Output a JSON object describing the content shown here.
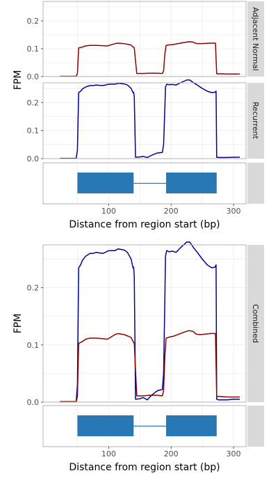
{
  "x_axis": {
    "label": "Distance from region start (bp)",
    "range": [
      -5,
      320
    ],
    "ticks": [
      "100",
      "200",
      "300"
    ],
    "tick_values": [
      100,
      200,
      300
    ]
  },
  "y_axis_label": "FPM",
  "colors": {
    "adjacent_normal": "#8B0000",
    "recurrent": "#00008B",
    "exon": "#2878B5",
    "strip": "#d9d9d9",
    "panel_border": "#b3b3b3"
  },
  "top_panels": {
    "ylim": [
      0,
      0.27
    ],
    "yticks": [
      "0.0",
      "0.1",
      "0.2"
    ],
    "ytick_values": [
      0,
      0.1,
      0.2
    ],
    "strip_labels": {
      "adjacent_normal": "Adjacent Normal",
      "recurrent": "Recurrent"
    }
  },
  "combined_panel": {
    "ylim": [
      0,
      0.275
    ],
    "yticks": [
      "0.0",
      "0.1",
      "0.2"
    ],
    "ytick_values": [
      0,
      0.1,
      0.2
    ],
    "strip_label": "Combined"
  },
  "chart_data": {
    "type": "line",
    "xlabel": "Distance from region start (bp)",
    "ylabel": "FPM",
    "series": [
      {
        "key": "adjacent_normal",
        "color": "#8B0000",
        "x": [
          22,
          48,
          50,
          52,
          58,
          63,
          70,
          80,
          90,
          98,
          110,
          115,
          125,
          132,
          136,
          140,
          141,
          145,
          155,
          165,
          178,
          186,
          188,
          190,
          192,
          198,
          203,
          208,
          215,
          220,
          228,
          235,
          240,
          246,
          255,
          263,
          271,
          273,
          276,
          290,
          300,
          310
        ],
        "y": [
          0.001,
          0.001,
          0.01,
          0.103,
          0.106,
          0.11,
          0.112,
          0.112,
          0.111,
          0.11,
          0.118,
          0.12,
          0.118,
          0.115,
          0.113,
          0.104,
          0.103,
          0.011,
          0.011,
          0.012,
          0.012,
          0.011,
          0.02,
          0.08,
          0.112,
          0.114,
          0.115,
          0.117,
          0.12,
          0.122,
          0.125,
          0.124,
          0.119,
          0.118,
          0.119,
          0.12,
          0.12,
          0.01,
          0.01,
          0.009,
          0.009,
          0.009
        ]
      },
      {
        "key": "recurrent",
        "color": "#00008B",
        "x": [
          22,
          48,
          50,
          52,
          55,
          58,
          63,
          70,
          75,
          80,
          90,
          95,
          98,
          102,
          110,
          115,
          125,
          130,
          136,
          139,
          140,
          141,
          143,
          150,
          155,
          162,
          167,
          172,
          178,
          186,
          188,
          190,
          191,
          193,
          197,
          202,
          208,
          215,
          225,
          230,
          236,
          242,
          250,
          258,
          265,
          270,
          272,
          273,
          276,
          290,
          300,
          310
        ],
        "y": [
          0.001,
          0.001,
          0.03,
          0.235,
          0.24,
          0.248,
          0.255,
          0.26,
          0.26,
          0.262,
          0.26,
          0.262,
          0.264,
          0.265,
          0.265,
          0.268,
          0.266,
          0.262,
          0.25,
          0.235,
          0.236,
          0.22,
          0.005,
          0.006,
          0.008,
          0.004,
          0.01,
          0.015,
          0.02,
          0.022,
          0.05,
          0.18,
          0.255,
          0.265,
          0.263,
          0.264,
          0.262,
          0.27,
          0.28,
          0.28,
          0.27,
          0.262,
          0.25,
          0.24,
          0.235,
          0.236,
          0.24,
          0.005,
          0.004,
          0.004,
          0.005,
          0.005
        ]
      }
    ],
    "exons": [
      {
        "start": 50,
        "end": 140
      },
      {
        "start": 192,
        "end": 273
      }
    ],
    "intron": {
      "start": 140,
      "end": 192
    }
  }
}
